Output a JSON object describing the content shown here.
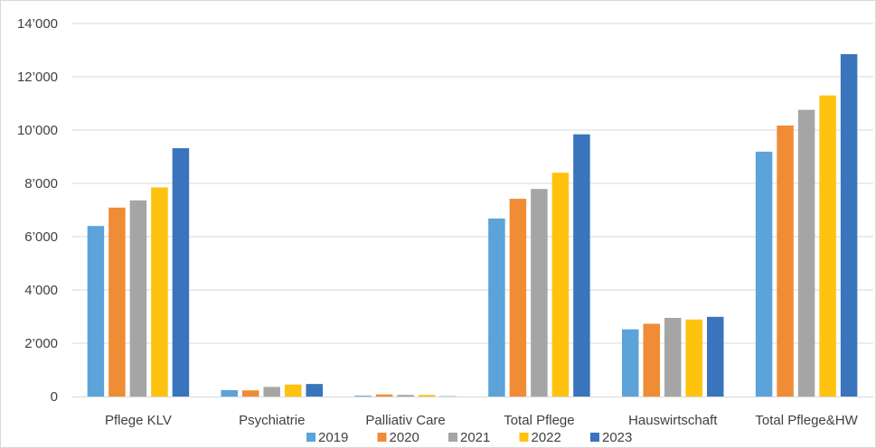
{
  "chart_data": {
    "type": "bar",
    "title": "",
    "xlabel": "",
    "ylabel": "",
    "ylim": [
      0,
      14000
    ],
    "yticks": [
      0,
      2000,
      4000,
      6000,
      8000,
      10000,
      12000,
      14000
    ],
    "ytick_labels": [
      "0",
      "2’000",
      "4’000",
      "6’000",
      "8’000",
      "10’000",
      "12’000",
      "14’000"
    ],
    "grid": true,
    "legend_position": "bottom",
    "categories": [
      "Pflege KLV",
      "Psychiatrie",
      "Palliativ Care",
      "Total Pflege",
      "Hauswirtschaft",
      "Total Pflege&HW"
    ],
    "series": [
      {
        "name": "2019",
        "color": "#5ba3d9",
        "values": [
          6400,
          240,
          30,
          6680,
          2520,
          9190
        ]
      },
      {
        "name": "2020",
        "color": "#f08c35",
        "values": [
          7090,
          230,
          80,
          7420,
          2730,
          10170
        ]
      },
      {
        "name": "2021",
        "color": "#a5a5a5",
        "values": [
          7360,
          360,
          60,
          7790,
          2950,
          10760
        ]
      },
      {
        "name": "2022",
        "color": "#ffc20e",
        "values": [
          7850,
          450,
          60,
          8400,
          2890,
          11300
        ]
      },
      {
        "name": "2023",
        "color": "#3a74bc",
        "values": [
          9320,
          470,
          10,
          9840,
          2990,
          12850
        ]
      }
    ]
  }
}
